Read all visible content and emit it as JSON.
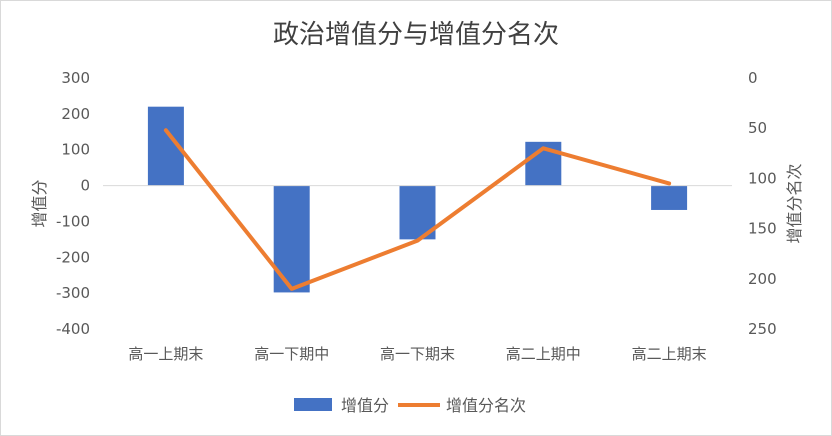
{
  "chart_data": {
    "type": "bar",
    "title": "政治增值分与增值分名次",
    "categories": [
      "高一上期末",
      "高一下期中",
      "高一下期末",
      "高二上期中",
      "高二上期末"
    ],
    "series": [
      {
        "name": "增值分",
        "type": "bar",
        "axis": "left",
        "values": [
          220,
          -298,
          -150,
          122,
          -68
        ]
      },
      {
        "name": "增值分名次",
        "type": "line",
        "axis": "right",
        "values": [
          52,
          210,
          162,
          70,
          105
        ]
      }
    ],
    "ylabel": "增值分",
    "ylim": [
      -400,
      300
    ],
    "yticks": [
      300,
      200,
      100,
      0,
      -100,
      -200,
      -300,
      -400
    ],
    "y2label": "增值分名次",
    "y2lim": [
      0,
      250
    ],
    "y2ticks": [
      0,
      50,
      100,
      150,
      200,
      250
    ],
    "y2_reversed": true,
    "grid": false,
    "legend": "bottom",
    "colors": {
      "bar": "#4472c4",
      "line": "#ed7d31",
      "axis": "#d9d9d9",
      "text": "#595959",
      "title": "#404040"
    }
  }
}
